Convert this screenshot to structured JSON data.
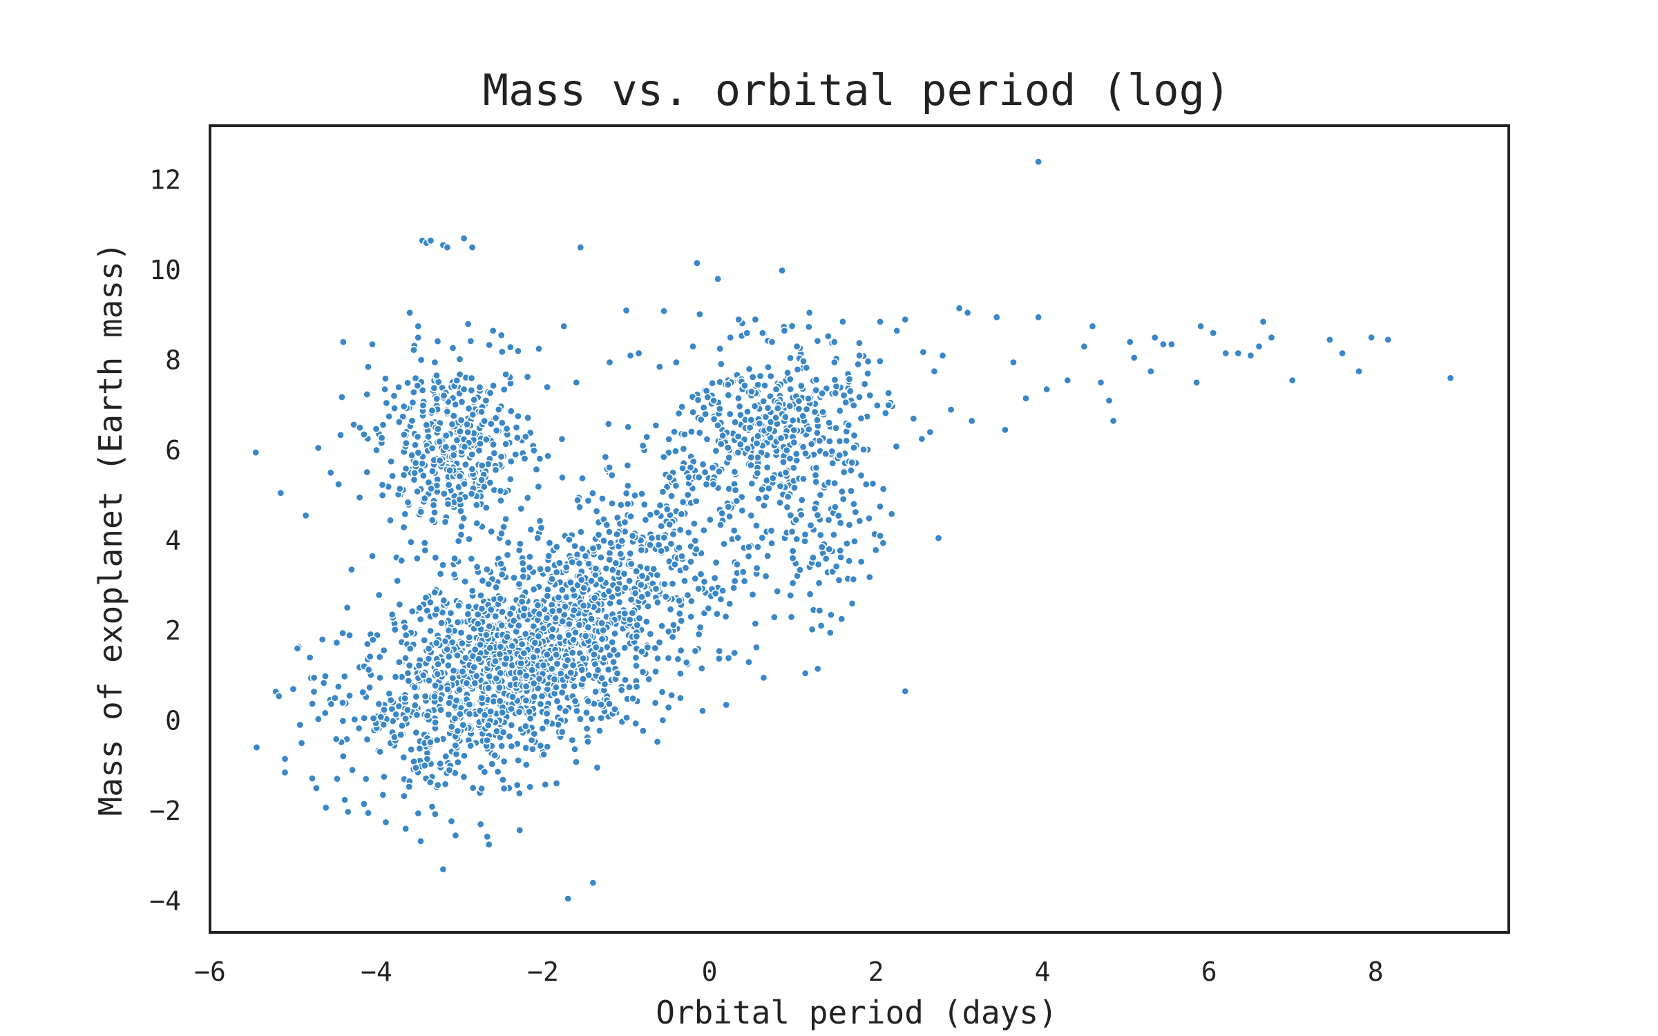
{
  "chart_data": {
    "type": "scatter",
    "title": "Mass vs. orbital period (log)",
    "xlabel": "Orbital period (days)",
    "ylabel": "Mass of exoplanet (Earth mass)",
    "xlim": [
      -6,
      9.6
    ],
    "ylim": [
      -4.7,
      13.2
    ],
    "xticks": [
      -6,
      -4,
      -2,
      0,
      2,
      4,
      6,
      8
    ],
    "yticks": [
      -4,
      -2,
      0,
      2,
      4,
      6,
      8,
      10,
      12
    ],
    "xtick_labels": [
      "−6",
      "−4",
      "−2",
      "0",
      "2",
      "4",
      "6",
      "8"
    ],
    "ytick_labels": [
      "−4",
      "−2",
      "0",
      "2",
      "4",
      "6",
      "8",
      "10",
      "12"
    ],
    "grid": false,
    "legend": "none",
    "point_color": "#3a87c8",
    "series": [
      {
        "points": [
          [
            -5.45,
            5.95
          ],
          [
            -5.15,
            5.05
          ],
          [
            -5.1,
            -0.85
          ],
          [
            -5.1,
            -1.15
          ],
          [
            -5.0,
            0.7
          ],
          [
            -4.95,
            1.6
          ],
          [
            -4.9,
            -0.5
          ],
          [
            -4.85,
            4.55
          ],
          [
            -4.8,
            1.4
          ],
          [
            -4.75,
            0.95
          ],
          [
            -4.7,
            6.05
          ],
          [
            -4.65,
            1.8
          ],
          [
            -4.55,
            5.5
          ],
          [
            -4.5,
            0.5
          ],
          [
            -4.4,
            8.4
          ],
          [
            -4.3,
            3.35
          ],
          [
            -4.2,
            6.5
          ],
          [
            -4.15,
            6.35
          ],
          [
            -4.1,
            7.85
          ],
          [
            -4.05,
            8.35
          ],
          [
            -4.05,
            3.65
          ],
          [
            -4.15,
            -1.85
          ],
          [
            -4.1,
            -2.05
          ],
          [
            -4.0,
            6.0
          ],
          [
            -3.9,
            7.35
          ],
          [
            -3.85,
            6.75
          ],
          [
            -3.75,
            3.1
          ],
          [
            -3.7,
            3.55
          ],
          [
            -3.65,
            -2.4
          ],
          [
            -3.6,
            9.05
          ],
          [
            -3.5,
            8.5
          ],
          [
            -3.45,
            10.65
          ],
          [
            -3.4,
            10.6
          ],
          [
            -3.35,
            10.65
          ],
          [
            -3.3,
            7.95
          ],
          [
            -3.2,
            10.55
          ],
          [
            -3.15,
            10.5
          ],
          [
            -3.2,
            -3.3
          ],
          [
            -3.05,
            -2.55
          ],
          [
            -2.95,
            10.7
          ],
          [
            -2.9,
            8.8
          ],
          [
            -2.85,
            10.5
          ],
          [
            -2.75,
            -2.3
          ],
          [
            -2.65,
            -2.75
          ],
          [
            -2.6,
            8.65
          ],
          [
            -2.5,
            8.55
          ],
          [
            -2.3,
            8.2
          ],
          [
            -2.05,
            8.25
          ],
          [
            -1.95,
            7.4
          ],
          [
            -1.75,
            8.75
          ],
          [
            -1.6,
            7.5
          ],
          [
            -1.55,
            10.5
          ],
          [
            -1.7,
            -3.95
          ],
          [
            -1.4,
            -3.6
          ],
          [
            -1.2,
            7.95
          ],
          [
            -1.0,
            9.1
          ],
          [
            -0.95,
            8.1
          ],
          [
            -0.85,
            8.15
          ],
          [
            -0.8,
            6.1
          ],
          [
            -0.6,
            7.85
          ],
          [
            -0.55,
            5.85
          ],
          [
            -0.4,
            7.95
          ],
          [
            -0.3,
            6.35
          ],
          [
            -0.25,
            5.4
          ],
          [
            -0.2,
            8.3
          ],
          [
            -0.15,
            10.15
          ],
          [
            -0.05,
            6.8
          ],
          [
            0.05,
            7.1
          ],
          [
            0.1,
            9.8
          ],
          [
            0.1,
            6.55
          ],
          [
            0.15,
            4.6
          ],
          [
            0.2,
            0.35
          ],
          [
            0.25,
            8.5
          ],
          [
            0.35,
            8.9
          ],
          [
            0.45,
            8.6
          ],
          [
            0.5,
            4.55
          ],
          [
            0.55,
            8.9
          ],
          [
            0.65,
            0.95
          ],
          [
            0.75,
            8.4
          ],
          [
            0.85,
            5.2
          ],
          [
            0.9,
            8.65
          ],
          [
            1.0,
            3.05
          ],
          [
            1.05,
            8.3
          ],
          [
            1.15,
            1.05
          ],
          [
            1.2,
            9.05
          ],
          [
            1.3,
            1.15
          ],
          [
            1.35,
            3.85
          ],
          [
            1.45,
            1.95
          ],
          [
            1.5,
            8.4
          ],
          [
            1.6,
            8.85
          ],
          [
            1.7,
            5.55
          ],
          [
            1.8,
            8.1
          ],
          [
            1.9,
            7.7
          ],
          [
            2.05,
            8.85
          ],
          [
            2.05,
            4.1
          ],
          [
            2.15,
            7.0
          ],
          [
            2.25,
            8.65
          ],
          [
            2.35,
            0.65
          ],
          [
            2.35,
            8.9
          ],
          [
            2.45,
            6.7
          ],
          [
            2.55,
            6.25
          ],
          [
            2.65,
            6.4
          ],
          [
            2.7,
            7.75
          ],
          [
            2.75,
            4.05
          ],
          [
            2.8,
            8.1
          ],
          [
            2.9,
            6.9
          ],
          [
            3.0,
            9.15
          ],
          [
            3.1,
            9.05
          ],
          [
            3.15,
            6.65
          ],
          [
            3.45,
            8.95
          ],
          [
            3.55,
            6.45
          ],
          [
            3.65,
            7.95
          ],
          [
            3.8,
            7.15
          ],
          [
            3.95,
            8.95
          ],
          [
            3.95,
            12.4
          ],
          [
            4.05,
            7.35
          ],
          [
            4.3,
            7.55
          ],
          [
            4.5,
            8.3
          ],
          [
            4.6,
            8.75
          ],
          [
            4.7,
            7.5
          ],
          [
            4.8,
            7.1
          ],
          [
            4.85,
            6.65
          ],
          [
            5.05,
            8.4
          ],
          [
            5.1,
            8.05
          ],
          [
            5.3,
            7.75
          ],
          [
            5.35,
            8.5
          ],
          [
            5.45,
            8.35
          ],
          [
            5.55,
            8.35
          ],
          [
            5.85,
            7.5
          ],
          [
            5.9,
            8.75
          ],
          [
            6.05,
            8.6
          ],
          [
            6.2,
            8.15
          ],
          [
            6.35,
            8.15
          ],
          [
            6.5,
            8.1
          ],
          [
            6.6,
            8.3
          ],
          [
            6.65,
            8.85
          ],
          [
            6.75,
            8.5
          ],
          [
            7.0,
            7.55
          ],
          [
            7.45,
            8.45
          ],
          [
            7.6,
            8.15
          ],
          [
            7.8,
            7.75
          ],
          [
            7.95,
            8.5
          ],
          [
            8.15,
            8.45
          ],
          [
            8.9,
            7.6
          ],
          [
            -0.35,
            0.5
          ],
          [
            0.3,
            1.5
          ],
          [
            0.55,
            2.15
          ],
          [
            -3.5,
            8.75
          ],
          [
            -2.95,
            7.35
          ],
          [
            -1.25,
            5.85
          ]
        ],
        "clusters": [
          {
            "n": 1500,
            "center": [
              -2.35,
              1.25
            ],
            "spread": [
              0.95,
              1.1
            ],
            "tilt": 0.55
          },
          {
            "n": 420,
            "center": [
              -3.05,
              6.1
            ],
            "spread": [
              0.45,
              0.9
            ],
            "tilt": 0.0
          },
          {
            "n": 330,
            "center": [
              0.75,
              6.7
            ],
            "spread": [
              0.55,
              0.85
            ],
            "tilt": 0.25
          },
          {
            "n": 360,
            "center": [
              -0.85,
              3.6
            ],
            "spread": [
              0.9,
              1.25
            ],
            "tilt": 0.6
          },
          {
            "n": 140,
            "center": [
              1.2,
              4.6
            ],
            "spread": [
              0.4,
              1.1
            ],
            "tilt": 0.0
          }
        ]
      }
    ]
  }
}
